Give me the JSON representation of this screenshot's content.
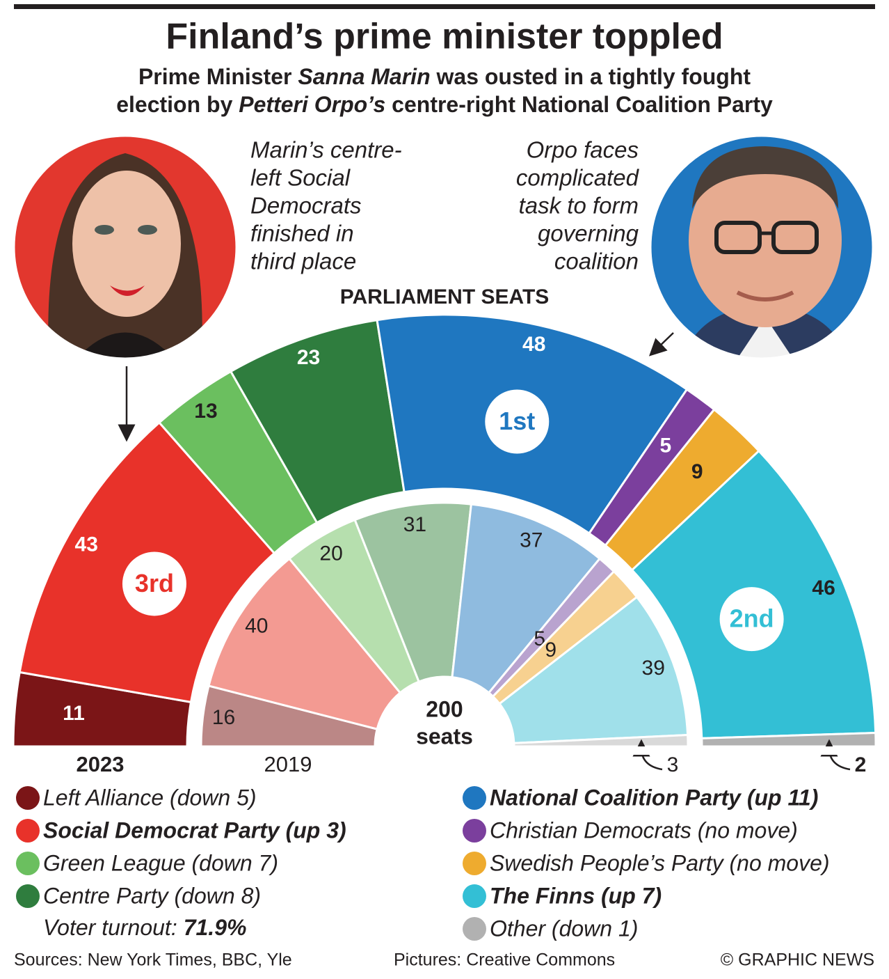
{
  "chart_data": {
    "type": "parliament",
    "title": "Finland’s prime minister toppled",
    "subtitle": [
      [
        {
          "text": "Prime Minister ",
          "italic": false
        },
        {
          "text": "Sanna Marin",
          "italic": true
        },
        {
          "text": " was ousted in a tightly fought",
          "italic": false
        }
      ],
      [
        {
          "text": "election by ",
          "italic": false
        },
        {
          "text": "Petteri Orpo’s",
          "italic": true
        },
        {
          "text": " centre-right National Coalition Party",
          "italic": false
        }
      ]
    ],
    "annotations": {
      "left": [
        "Marin’s centre-",
        "left Social",
        "Democrats",
        "finished in",
        "third place"
      ],
      "right": [
        "Orpo faces",
        "complicated",
        "task to form",
        "governing",
        "coalition"
      ]
    },
    "section_title": "PARLIAMENT SEATS",
    "rings": [
      "2023",
      "2019"
    ],
    "total": 200,
    "total_label": "seats",
    "series": [
      {
        "name": "Left Alliance (down 5)",
        "bold": false,
        "colors": [
          "#7b1517",
          "#bb8786"
        ],
        "values": [
          11,
          16
        ]
      },
      {
        "name": "Social Democrat Party (up 3)",
        "bold": true,
        "colors": [
          "#e8322a",
          "#f39a92"
        ],
        "values": [
          43,
          40
        ],
        "rank": "3rd"
      },
      {
        "name": "Green League (down 7)",
        "bold": false,
        "colors": [
          "#6bbf5f",
          "#b6dfae"
        ],
        "values": [
          13,
          20
        ]
      },
      {
        "name": "Centre Party (down 8)",
        "bold": false,
        "colors": [
          "#2f7d3e",
          "#9cc3a0"
        ],
        "values": [
          23,
          31
        ]
      },
      {
        "name": "National Coalition Party (up 11)",
        "bold": true,
        "colors": [
          "#1f77c0",
          "#8fbbdf"
        ],
        "values": [
          48,
          37
        ],
        "rank": "1st"
      },
      {
        "name": "Christian Democrats (no move)",
        "bold": false,
        "colors": [
          "#7b3f9d",
          "#b9a3cf"
        ],
        "values": [
          5,
          5
        ]
      },
      {
        "name": "Swedish People’s Party (no move)",
        "bold": false,
        "colors": [
          "#eeab2f",
          "#f7d190"
        ],
        "values": [
          9,
          9
        ]
      },
      {
        "name": "The Finns (up 7)",
        "bold": true,
        "colors": [
          "#33bfd5",
          "#a0e0ea"
        ],
        "values": [
          46,
          39
        ],
        "rank": "2nd"
      },
      {
        "name": "Other (down 1)",
        "bold": false,
        "colors": [
          "#b1b1b1",
          "#d9d9d9"
        ],
        "values": [
          2,
          3
        ]
      }
    ],
    "turnout_label": "Voter turnout:",
    "turnout": {
      "value": 71.9,
      "label": "71.9%"
    },
    "footer": {
      "sources": "Sources: New York Times, BBC, Yle",
      "pictures": "Pictures: Creative Commons",
      "credit": "© GRAPHIC NEWS"
    }
  }
}
